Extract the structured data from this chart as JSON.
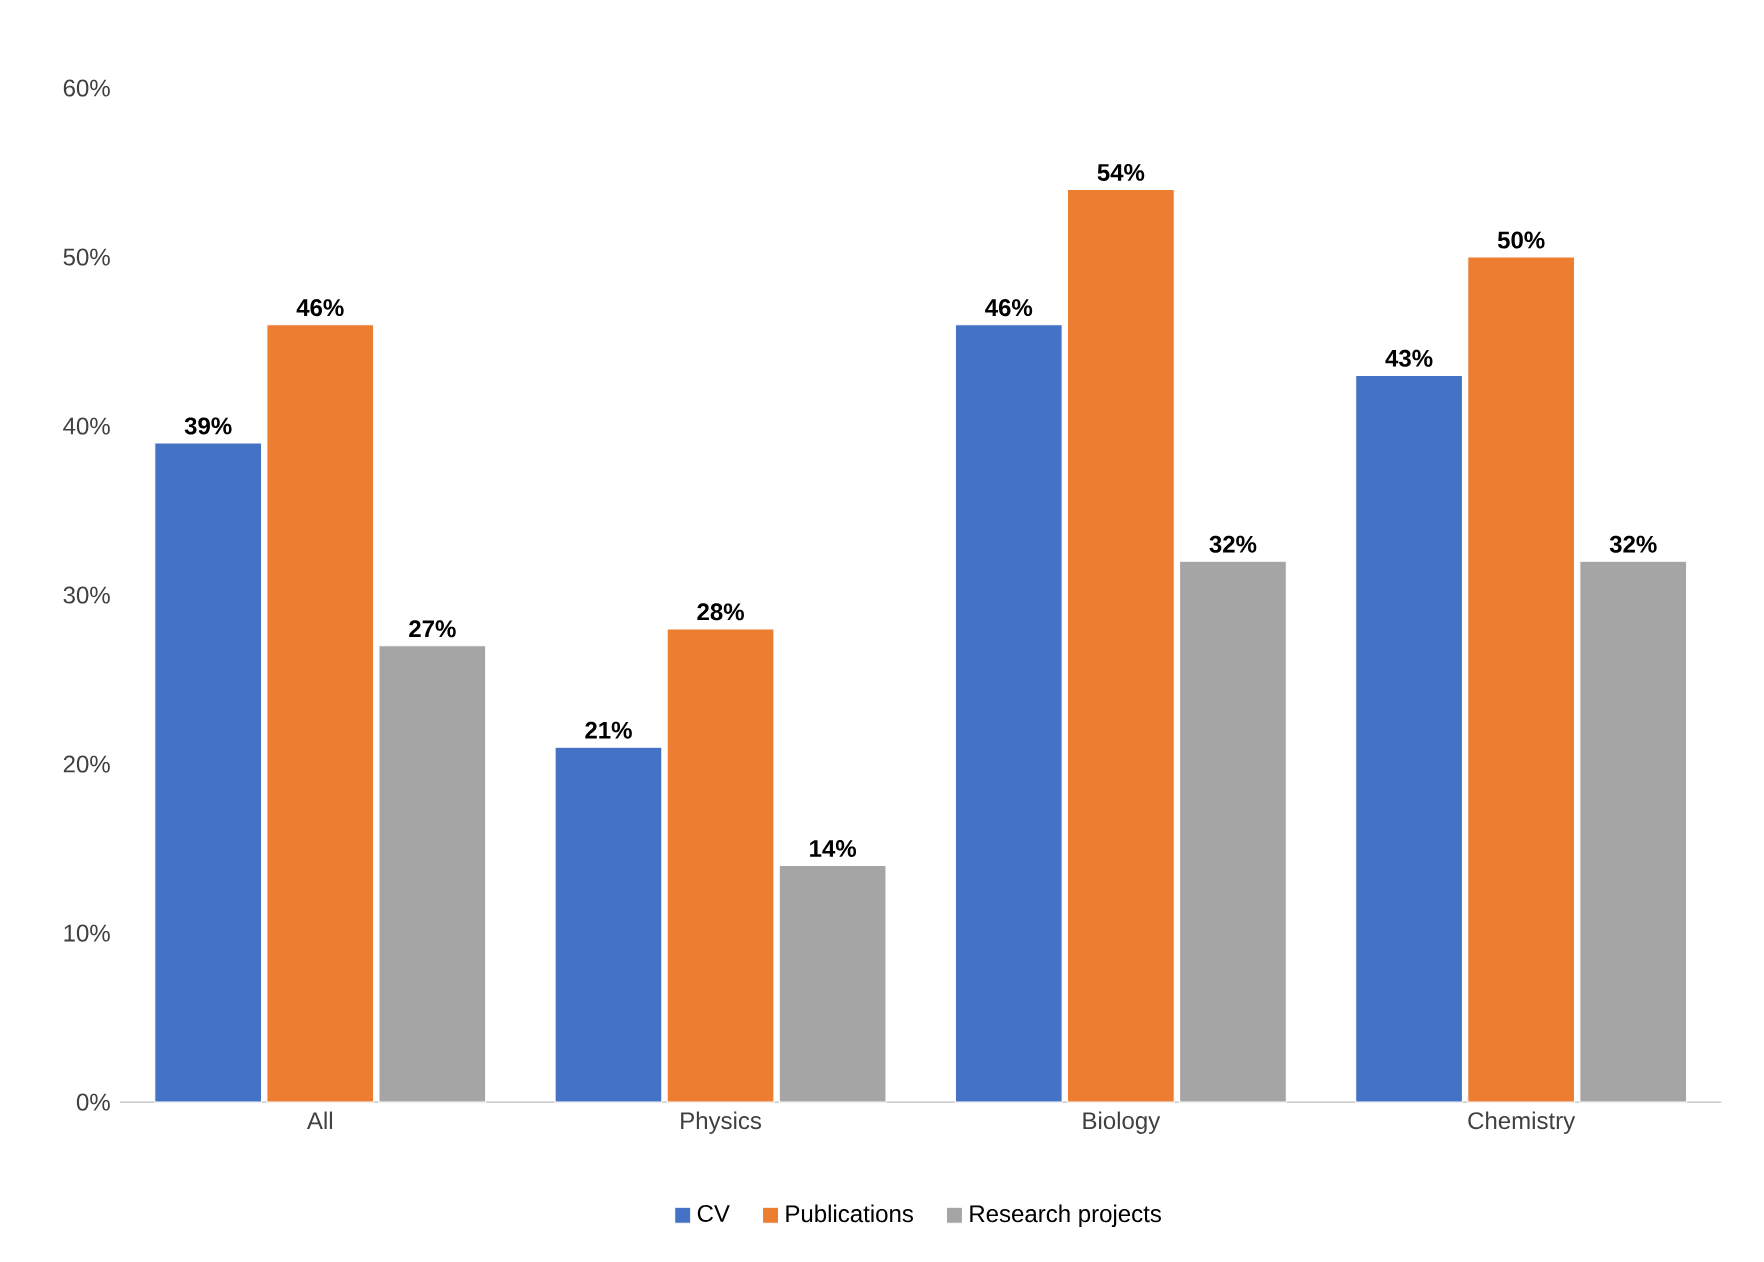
{
  "chart_data": {
    "type": "bar",
    "categories": [
      "All",
      "Physics",
      "Biology",
      "Chemistry"
    ],
    "series": [
      {
        "name": "CV",
        "color": "#4472c4",
        "values": [
          39,
          21,
          46,
          43
        ],
        "value_labels": [
          "39%",
          "21%",
          "46%",
          "43%"
        ]
      },
      {
        "name": "Publications",
        "color": "#ed7d31",
        "values": [
          46,
          28,
          54,
          50
        ],
        "value_labels": [
          "46%",
          "28%",
          "54%",
          "50%"
        ]
      },
      {
        "name": "Research projects",
        "color": "#a5a5a5",
        "values": [
          27,
          14,
          32,
          32
        ],
        "value_labels": [
          "27%",
          "14%",
          "32%",
          "32%"
        ]
      }
    ],
    "ylim": [
      0,
      60
    ],
    "yticks": [
      {
        "value": 0,
        "label": "0%"
      },
      {
        "value": 10,
        "label": "10%"
      },
      {
        "value": 20,
        "label": "20%"
      },
      {
        "value": 30,
        "label": "30%"
      },
      {
        "value": 40,
        "label": "40%"
      },
      {
        "value": 50,
        "label": "50%"
      },
      {
        "value": 60,
        "label": "60%"
      }
    ],
    "grid": false,
    "legend": "bottom"
  }
}
